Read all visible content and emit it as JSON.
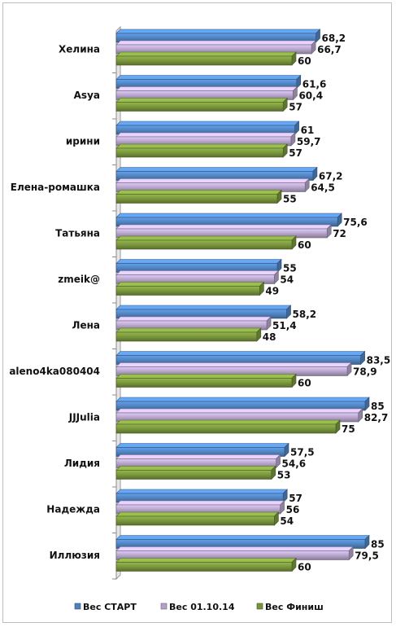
{
  "chart_data": {
    "type": "bar",
    "orientation": "horizontal",
    "categories": [
      "Хелина",
      "Asya",
      "ирини",
      "Елена-ромашка",
      "Татьяна",
      "zmeik@",
      "Лена",
      "aleno4ka080404",
      "JJJulia",
      "Лидия",
      "Надежда",
      "Иллюзия"
    ],
    "series": [
      {
        "name": "Вес СТАРТ",
        "color": "#4f81bd",
        "values": [
          68.2,
          61.6,
          61,
          67.2,
          75.6,
          55,
          58.2,
          83.5,
          85,
          57.5,
          57,
          85
        ],
        "labels": [
          "68,2",
          "61,6",
          "61",
          "67,2",
          "75,6",
          "55",
          "58,2",
          "83,5",
          "85",
          "57,5",
          "57",
          "85"
        ]
      },
      {
        "name": "Вес 01.10.14",
        "color": "#b3a2c7",
        "values": [
          66.7,
          60.4,
          59.7,
          64.5,
          72,
          54,
          51.4,
          78.9,
          82.7,
          54.6,
          56,
          79.5
        ],
        "labels": [
          "66,7",
          "60,4",
          "59,7",
          "64,5",
          "72",
          "54",
          "51,4",
          "78,9",
          "82,7",
          "54,6",
          "56",
          "79,5"
        ]
      },
      {
        "name": "Вес Финиш",
        "color": "#77933c",
        "values": [
          60,
          57,
          57,
          55,
          60,
          49,
          48,
          60,
          75,
          53,
          54,
          60
        ],
        "labels": [
          "60",
          "57",
          "57",
          "55",
          "60",
          "49",
          "48",
          "60",
          "75",
          "53",
          "54",
          "60"
        ]
      }
    ],
    "xlim": [
      0,
      90
    ],
    "legend": "bottom",
    "grid": false,
    "style": "3d-bar"
  }
}
